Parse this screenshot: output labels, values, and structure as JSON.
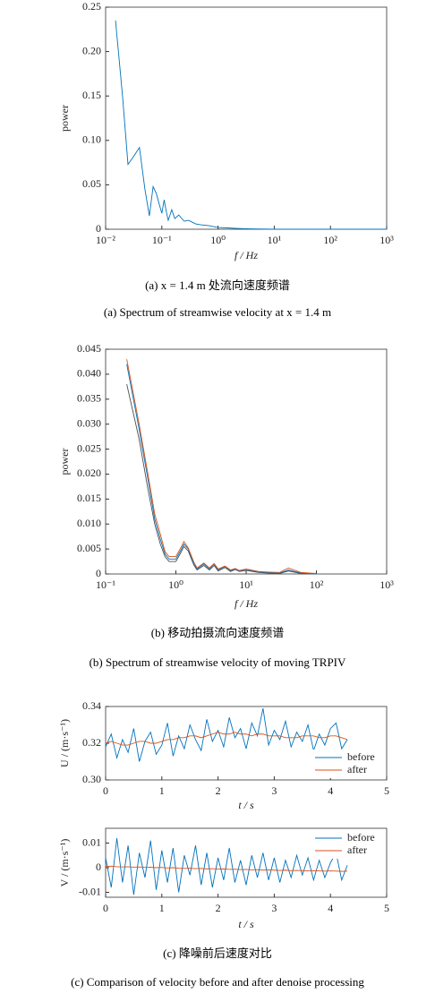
{
  "chart_data": [
    {
      "type": "line",
      "xlabel": "f / Hz",
      "ylabel": "power",
      "xscale": "log",
      "xlim": [
        0.01,
        1000
      ],
      "ylim": [
        0,
        0.25
      ],
      "xticks": [
        {
          "value": 0.01,
          "label": "10⁻²"
        },
        {
          "value": 0.1,
          "label": "10⁻¹"
        },
        {
          "value": 1,
          "label": "10⁰"
        },
        {
          "value": 10,
          "label": "10¹"
        },
        {
          "value": 100,
          "label": "10²"
        },
        {
          "value": 1000,
          "label": "10³"
        }
      ],
      "yticks": [
        0,
        0.05,
        {
          "value": 0.1,
          "label": "0.10"
        },
        0.15,
        {
          "value": 0.2,
          "label": "0.20"
        },
        0.25
      ],
      "x": [
        0.015,
        0.02,
        0.025,
        0.03,
        0.04,
        0.05,
        0.06,
        0.07,
        0.08,
        0.09,
        0.1,
        0.11,
        0.12,
        0.13,
        0.15,
        0.17,
        0.2,
        0.25,
        0.3,
        0.4,
        0.5,
        0.7,
        1,
        1.5,
        2,
        3,
        5,
        10,
        20,
        50,
        100,
        500,
        1000
      ],
      "series": [
        {
          "color": "#0072bd",
          "values": [
            0.235,
            0.15,
            0.073,
            0.08,
            0.092,
            0.045,
            0.015,
            0.048,
            0.04,
            0.028,
            0.018,
            0.033,
            0.02,
            0.01,
            0.022,
            0.012,
            0.016,
            0.009,
            0.01,
            0.006,
            0.005,
            0.004,
            0.002,
            0.0015,
            0.001,
            0.0006,
            0.0003,
            0.0001,
            5e-05,
            0,
            0,
            0,
            0
          ]
        }
      ]
    },
    {
      "type": "line",
      "xlabel": "f / Hz",
      "ylabel": "power",
      "xscale": "log",
      "xlim": [
        0.1,
        1000
      ],
      "ylim": [
        0,
        0.045
      ],
      "xticks": [
        {
          "value": 0.1,
          "label": "10⁻¹"
        },
        {
          "value": 1,
          "label": "10⁰"
        },
        {
          "value": 10,
          "label": "10¹"
        },
        {
          "value": 100,
          "label": "10²"
        },
        {
          "value": 1000,
          "label": "10³"
        }
      ],
      "yticks": [
        0,
        0.005,
        {
          "value": 0.01,
          "label": "0.010"
        },
        0.015,
        {
          "value": 0.02,
          "label": "0.020"
        },
        0.025,
        {
          "value": 0.03,
          "label": "0.030"
        },
        0.035,
        {
          "value": 0.04,
          "label": "0.040"
        },
        0.045
      ],
      "x": [
        0.2,
        0.3,
        0.4,
        0.5,
        0.6,
        0.7,
        0.8,
        1,
        1.2,
        1.3,
        1.5,
        1.8,
        2,
        2.5,
        3,
        3.5,
        4,
        5,
        6,
        7,
        8,
        10,
        15,
        20,
        30,
        40,
        60,
        100
      ],
      "series": [
        {
          "color": "#4d4d4d",
          "values": [
            0.038,
            0.027,
            0.017,
            0.01,
            0.006,
            0.0035,
            0.0025,
            0.0025,
            0.0045,
            0.0055,
            0.0046,
            0.0018,
            0.0008,
            0.0017,
            0.0008,
            0.0017,
            0.0006,
            0.0013,
            0.0005,
            0.0009,
            0.0005,
            0.0007,
            0.0003,
            0.0002,
            0.0001,
            0.0006,
            0.0001,
            0
          ]
        },
        {
          "color": "#0072bd",
          "values": [
            0.042,
            0.029,
            0.019,
            0.011,
            0.007,
            0.004,
            0.003,
            0.003,
            0.005,
            0.006,
            0.005,
            0.002,
            0.001,
            0.002,
            0.001,
            0.002,
            0.0008,
            0.0015,
            0.0007,
            0.001,
            0.0006,
            0.0009,
            0.0004,
            0.0003,
            0.0002,
            0.0008,
            0.0002,
            0
          ]
        },
        {
          "color": "#d95319",
          "values": [
            0.043,
            0.03,
            0.02,
            0.012,
            0.008,
            0.0045,
            0.0035,
            0.0035,
            0.0055,
            0.0065,
            0.0052,
            0.0024,
            0.0012,
            0.0022,
            0.0012,
            0.0021,
            0.001,
            0.0016,
            0.0008,
            0.0011,
            0.0007,
            0.001,
            0.0005,
            0.0004,
            0.0003,
            0.0012,
            0.0003,
            0.0001
          ]
        }
      ]
    },
    {
      "type": "line",
      "xlabel": "t / s",
      "ylabel": "U / (m·s⁻¹)",
      "legend": "lower right",
      "xlim": [
        0,
        5
      ],
      "ylim": [
        0.3,
        0.34
      ],
      "xticks": [
        0,
        1,
        2,
        3,
        4,
        5
      ],
      "yticks": [
        {
          "value": 0.3,
          "label": "0.30"
        },
        0.32,
        0.34
      ],
      "x": [
        0,
        0.1,
        0.2,
        0.3,
        0.4,
        0.5,
        0.6,
        0.7,
        0.8,
        0.9,
        1,
        1.1,
        1.2,
        1.3,
        1.4,
        1.5,
        1.6,
        1.7,
        1.8,
        1.9,
        2,
        2.1,
        2.2,
        2.3,
        2.4,
        2.5,
        2.6,
        2.7,
        2.8,
        2.9,
        3,
        3.1,
        3.2,
        3.3,
        3.4,
        3.5,
        3.6,
        3.7,
        3.8,
        3.9,
        4,
        4.1,
        4.2,
        4.3
      ],
      "series": [
        {
          "name": "before",
          "color": "#0072bd",
          "values": [
            0.318,
            0.325,
            0.312,
            0.322,
            0.315,
            0.328,
            0.31,
            0.321,
            0.326,
            0.314,
            0.319,
            0.331,
            0.313,
            0.324,
            0.317,
            0.33,
            0.322,
            0.316,
            0.333,
            0.321,
            0.327,
            0.318,
            0.334,
            0.323,
            0.328,
            0.317,
            0.331,
            0.324,
            0.339,
            0.319,
            0.327,
            0.322,
            0.332,
            0.318,
            0.326,
            0.321,
            0.33,
            0.316,
            0.325,
            0.319,
            0.328,
            0.331,
            0.317,
            0.322
          ]
        },
        {
          "name": "after",
          "color": "#d95319",
          "values": [
            0.32,
            0.321,
            0.32,
            0.319,
            0.319,
            0.32,
            0.321,
            0.321,
            0.32,
            0.32,
            0.321,
            0.322,
            0.322,
            0.323,
            0.323,
            0.324,
            0.324,
            0.323,
            0.324,
            0.325,
            0.326,
            0.325,
            0.325,
            0.326,
            0.325,
            0.325,
            0.324,
            0.325,
            0.325,
            0.324,
            0.324,
            0.324,
            0.323,
            0.323,
            0.323,
            0.324,
            0.324,
            0.324,
            0.323,
            0.323,
            0.324,
            0.324,
            0.323,
            0.322
          ]
        }
      ]
    },
    {
      "type": "line",
      "xlabel": "t / s",
      "ylabel": "V / (m·s⁻¹)",
      "legend": "upper right",
      "xlim": [
        0,
        5
      ],
      "ylim": [
        -0.012,
        0.016
      ],
      "xticks": [
        0,
        1,
        2,
        3,
        4,
        5
      ],
      "yticks": [
        -0.01,
        0,
        0.01
      ],
      "x": [
        0,
        0.1,
        0.2,
        0.3,
        0.4,
        0.5,
        0.6,
        0.7,
        0.8,
        0.9,
        1,
        1.1,
        1.2,
        1.3,
        1.4,
        1.5,
        1.6,
        1.7,
        1.8,
        1.9,
        2,
        2.1,
        2.2,
        2.3,
        2.4,
        2.5,
        2.6,
        2.7,
        2.8,
        2.9,
        3,
        3.1,
        3.2,
        3.3,
        3.4,
        3.5,
        3.6,
        3.7,
        3.8,
        3.9,
        4,
        4.1,
        4.2,
        4.3
      ],
      "series": [
        {
          "name": "before",
          "color": "#0072bd",
          "values": [
            0.004,
            -0.008,
            0.012,
            -0.006,
            0.009,
            -0.011,
            0.006,
            -0.004,
            0.011,
            -0.009,
            0.007,
            -0.006,
            0.008,
            -0.01,
            0.005,
            -0.003,
            0.009,
            -0.007,
            0.006,
            -0.008,
            0.004,
            -0.005,
            0.008,
            -0.006,
            0.003,
            -0.007,
            0.005,
            -0.004,
            0.006,
            -0.005,
            0.004,
            -0.006,
            0.003,
            -0.004,
            0.005,
            -0.003,
            0.004,
            -0.005,
            0.003,
            -0.004,
            0.002,
            0.006,
            -0.005,
            0.001
          ]
        },
        {
          "name": "after",
          "color": "#d95319",
          "values": [
            0.0005,
            0.0006,
            0.0004,
            0.0003,
            0.0004,
            0.0002,
            0.0003,
            0.0001,
            0.0002,
            0,
            0.0001,
            -0.0001,
            0,
            -0.0002,
            -0.0003,
            -0.0002,
            -0.0004,
            -0.0003,
            -0.0005,
            -0.0004,
            -0.0006,
            -0.0005,
            -0.0007,
            -0.0006,
            -0.0008,
            -0.0007,
            -0.0009,
            -0.0008,
            -0.001,
            -0.0009,
            -0.001,
            -0.0011,
            -0.001,
            -0.0012,
            -0.0011,
            -0.0012,
            -0.0013,
            -0.0012,
            -0.0013,
            -0.0014,
            -0.0013,
            -0.0014,
            -0.0015,
            -0.0014
          ]
        }
      ]
    }
  ],
  "captions": [
    {
      "zh": "(a) x = 1.4 m 处流向速度频谱",
      "en": "(a) Spectrum of streamwise velocity at x = 1.4 m"
    },
    {
      "zh": "(b) 移动拍摄流向速度频谱",
      "en": "(b) Spectrum of streamwise velocity of moving TRPIV"
    },
    {
      "zh": "(c) 降噪前后速度对比",
      "en": "(c) Comparison of velocity before and after denoise processing"
    }
  ]
}
